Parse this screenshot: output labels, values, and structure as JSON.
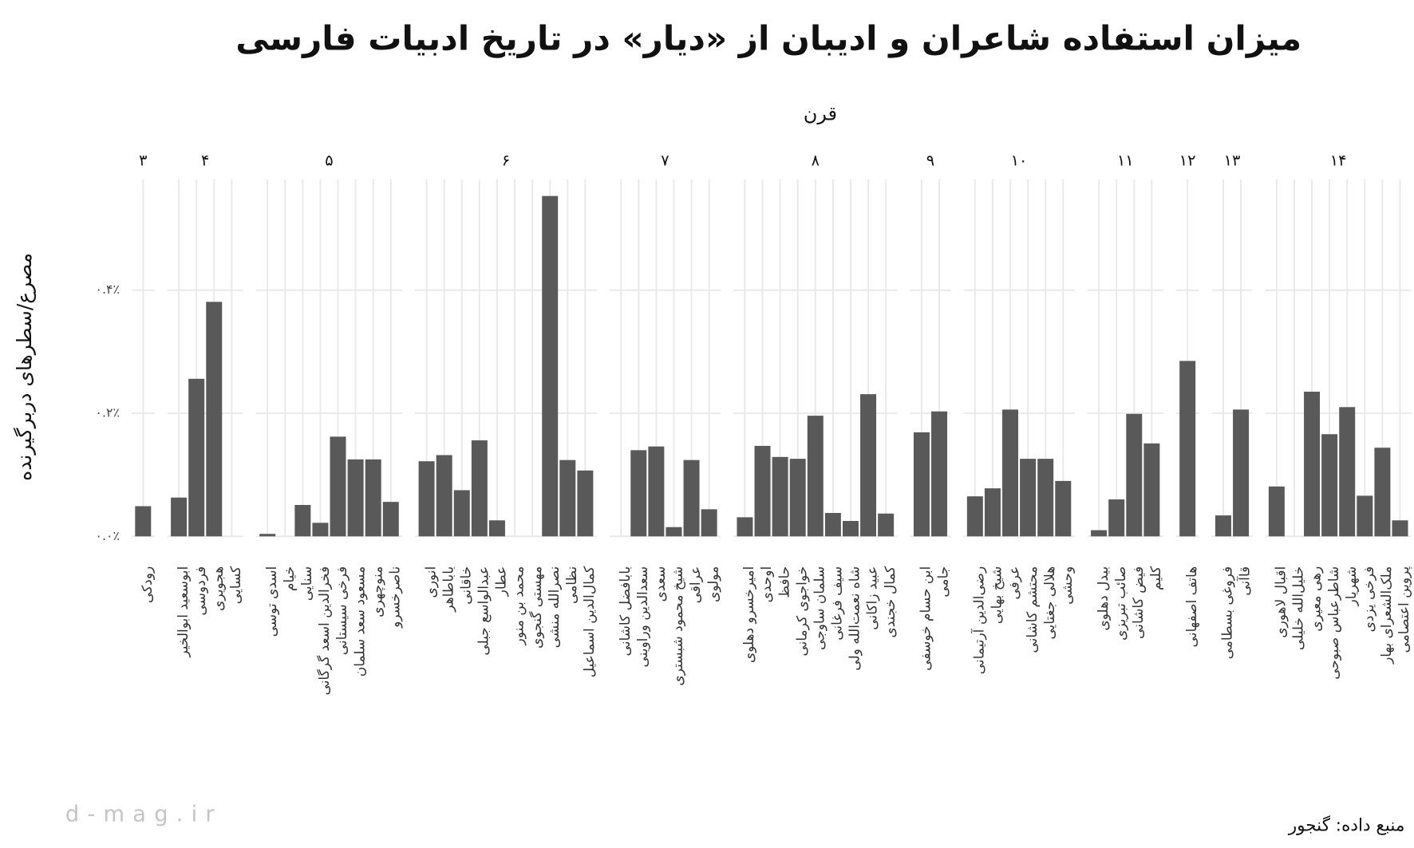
{
  "chart_data": {
    "type": "bar",
    "title": "میزان استفاده شاعران و ادیبان از «دیار» در تاریخ ادبیات فارسی",
    "facet_label": "قرن",
    "y_label": "مصرع/سطرهای دربرگیرنده",
    "caption": "منبع داده: گنجور",
    "watermark": "d-mag.ir",
    "color": "#595959",
    "grid": true,
    "ylim": [
      0,
      0.58
    ],
    "yticks": [
      {
        "value": 0,
        "label": "۰.۰٪"
      },
      {
        "value": 0.2,
        "label": "۰.۲٪"
      },
      {
        "value": 0.4,
        "label": "۰.۴٪"
      }
    ],
    "panels": [
      {
        "label": "۳",
        "categories": [
          "رودکی"
        ],
        "values": [
          0.049
        ]
      },
      {
        "label": "۴",
        "categories": [
          "ابوسعید ابوالخیر",
          "فردوسی",
          "هجویری",
          "کسایی"
        ],
        "values": [
          0.063,
          0.256,
          0.381,
          0
        ]
      },
      {
        "label": "۵",
        "categories": [
          "اسدی توسی",
          "خیام",
          "سنایی",
          "فخرالدین اسعد گرگانی",
          "فرخی سیستانی",
          "مسعود سعد سلمان",
          "منوچهری",
          "ناصرخسرو"
        ],
        "values": [
          0.004,
          0,
          0.051,
          0.022,
          0.162,
          0.125,
          0.125,
          0.056
        ]
      },
      {
        "label": "۶",
        "categories": [
          "انوری",
          "باباطاهر",
          "خاقانی",
          "عبدالواسع جبلی",
          "عطار",
          "محمد بن منور",
          "مهستی گنجوی",
          "نصرالله منشی",
          "نظامی",
          "کمال‌الدین اسماعیل"
        ],
        "values": [
          0.122,
          0.132,
          0.075,
          0.156,
          0.026,
          0,
          0,
          0.553,
          0.124,
          0.107
        ]
      },
      {
        "label": "۷",
        "categories": [
          "بابافضل کاشانی",
          "سعدالدین وراوینی",
          "سعدی",
          "شیخ محمود شبستری",
          "عراقی",
          "مولوی"
        ],
        "values": [
          0,
          0.14,
          0.146,
          0.015,
          0.124,
          0.044
        ]
      },
      {
        "label": "۸",
        "categories": [
          "امیرخسرو دهلوی",
          "اوحدی",
          "حافظ",
          "خواجوی کرمانی",
          "سلمان ساوجی",
          "سیف فرغانی",
          "شاه نعمت‌الله ولی",
          "عبید زاکانی",
          "کمال خجندی"
        ],
        "values": [
          0.031,
          0.147,
          0.129,
          0.126,
          0.196,
          0.038,
          0.025,
          0.231,
          0.037
        ]
      },
      {
        "label": "۹",
        "categories": [
          "ابن حسام خوسفی",
          "جامی"
        ],
        "values": [
          0.169,
          0.203
        ]
      },
      {
        "label": "۱۰",
        "categories": [
          "رضی‌الدین آرتیمانی",
          "شیخ بهایی",
          "عرفی",
          "محتشم کاشانی",
          "هلالی جغتایی",
          "وحشی"
        ],
        "values": [
          0.065,
          0.078,
          0.206,
          0.126,
          0.126,
          0.09
        ]
      },
      {
        "label": "۱۱",
        "categories": [
          "بیدل دهلوی",
          "صائب تبریزی",
          "فیض کاشانی",
          "کلیم"
        ],
        "values": [
          0.01,
          0.06,
          0.199,
          0.151
        ]
      },
      {
        "label": "۱۲",
        "categories": [
          "هاتف اصفهانی"
        ],
        "values": [
          0.285
        ]
      },
      {
        "label": "۱۳",
        "categories": [
          "فروغی بسطامی",
          "قاآنی"
        ],
        "values": [
          0.034,
          0.206
        ]
      },
      {
        "label": "۱۴",
        "categories": [
          "اقبال لاهوری",
          "خلیل‌الله خلیلی",
          "رهی معیری",
          "شاطرعباس صبوحی",
          "شهریار",
          "فرخی یزدی",
          "ملک‌الشعرای بهار",
          "پروین اعتصامی"
        ],
        "values": [
          0.081,
          0,
          0.235,
          0.166,
          0.21,
          0.066,
          0.144,
          0.026
        ]
      }
    ]
  }
}
